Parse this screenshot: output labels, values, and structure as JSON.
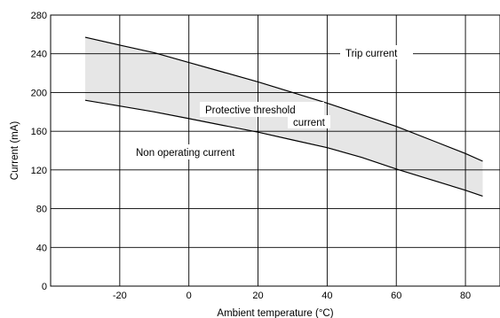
{
  "chart_data": {
    "type": "line",
    "xlabel": "Ambient temperature (°C)",
    "ylabel": "Current (mA)",
    "xlim": [
      -40,
      90
    ],
    "ylim": [
      0,
      280
    ],
    "x_ticks": [
      -20,
      0,
      20,
      40,
      60,
      80
    ],
    "y_ticks": [
      0,
      40,
      80,
      120,
      160,
      200,
      240,
      280
    ],
    "grid": true,
    "series": [
      {
        "name": "Trip current",
        "x": [
          -30,
          -20,
          -10,
          0,
          10,
          20,
          30,
          40,
          50,
          60,
          70,
          80,
          85
        ],
        "y": [
          257,
          249,
          241,
          231,
          221,
          211,
          200,
          189,
          177,
          165,
          151,
          137,
          129
        ]
      },
      {
        "name": "Non operating current",
        "x": [
          -30,
          -20,
          -10,
          0,
          10,
          20,
          30,
          40,
          50,
          60,
          70,
          80,
          85
        ],
        "y": [
          192,
          186,
          180,
          173,
          166,
          159,
          151,
          143,
          133,
          121,
          110,
          99,
          93
        ]
      }
    ],
    "band_label": [
      "Protective threshold",
      "current"
    ]
  }
}
